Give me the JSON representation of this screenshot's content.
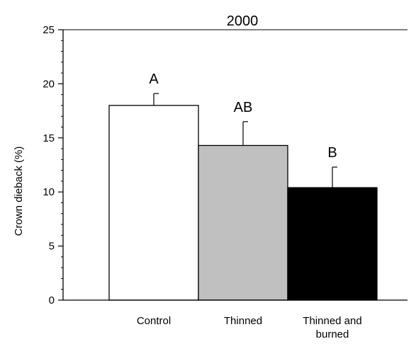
{
  "chart_data": {
    "type": "bar",
    "title": "2000",
    "xlabel": "",
    "ylabel": "Crown dieback (%)",
    "ylim": [
      0,
      25
    ],
    "yticks": [
      0,
      5,
      10,
      15,
      20,
      25
    ],
    "y_minor_step": 1,
    "grid": false,
    "categories": [
      [
        "Control"
      ],
      [
        "Thinned"
      ],
      [
        "Thinned and",
        "burned"
      ]
    ],
    "values": [
      18.0,
      14.3,
      10.4
    ],
    "errors": [
      1.1,
      2.2,
      1.9
    ],
    "significance_labels": [
      "A",
      "AB",
      "B"
    ],
    "colors": {
      "bars": [
        "#ffffff",
        "#c0c0c0",
        "#000000"
      ],
      "edge": "#000000"
    }
  }
}
